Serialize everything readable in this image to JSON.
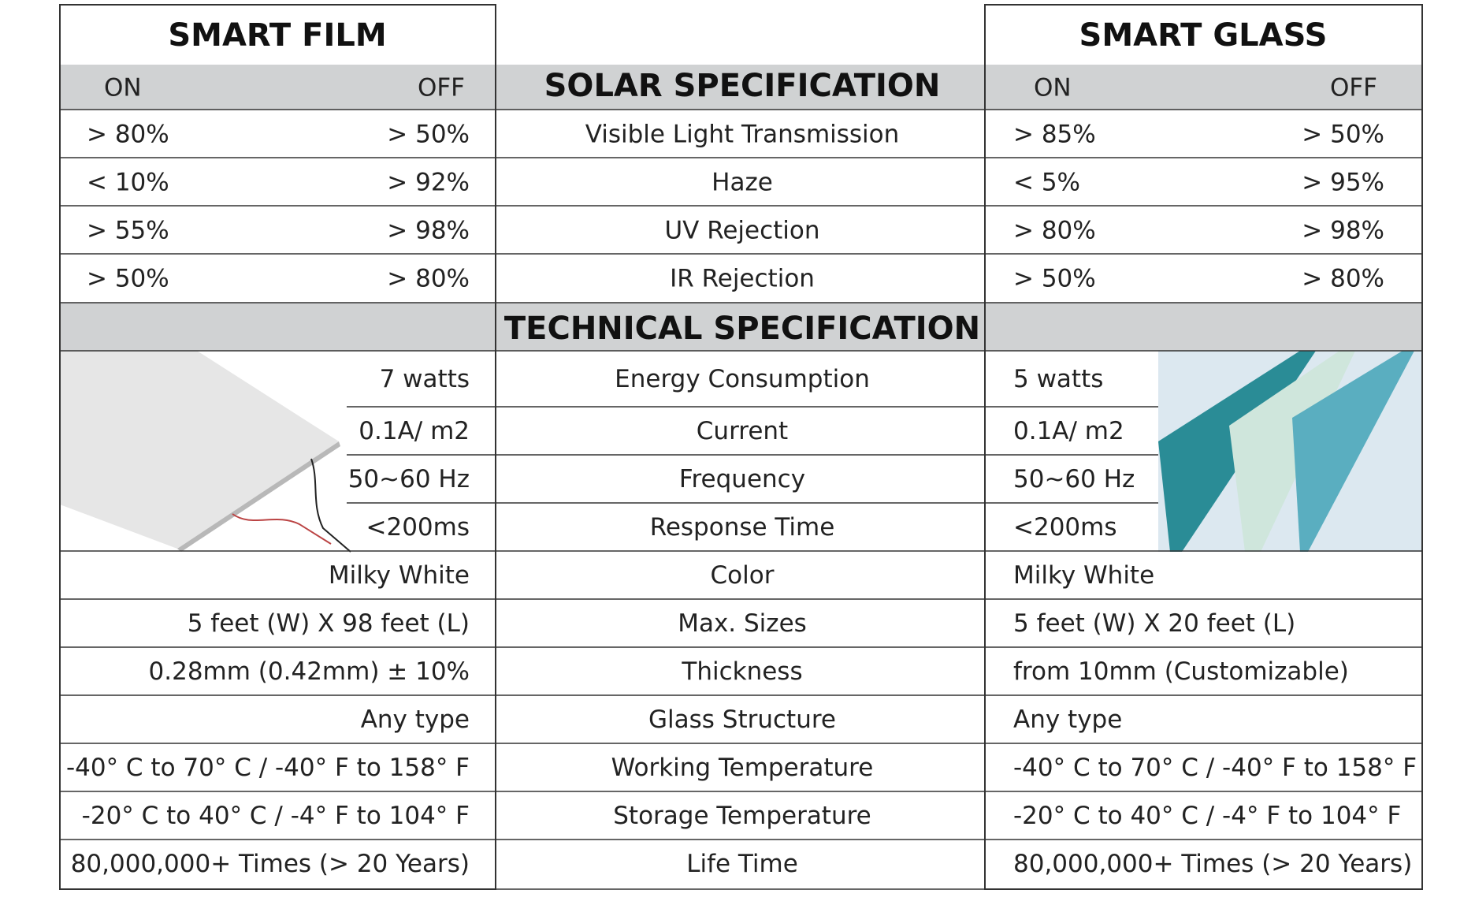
{
  "smart_film": {
    "title": "SMART FILM",
    "on": "ON",
    "off": "OFF"
  },
  "smart_glass": {
    "title": "SMART GLASS",
    "on": "ON",
    "off": "OFF"
  },
  "solar_title": "SOLAR SPECIFICATION",
  "solar_rows": [
    {
      "label": "Visible Light Transmission",
      "film_on": "> 80%",
      "film_off": "> 50%",
      "glass_on": "> 85%",
      "glass_off": "> 50%"
    },
    {
      "label": "Haze",
      "film_on": "< 10%",
      "film_off": "> 92%",
      "glass_on": "< 5%",
      "glass_off": "> 95%"
    },
    {
      "label": "UV Rejection",
      "film_on": "> 55%",
      "film_off": "> 98%",
      "glass_on": "> 80%",
      "glass_off": "> 98%"
    },
    {
      "label": "IR Rejection",
      "film_on": "> 50%",
      "film_off": "> 80%",
      "glass_on": "> 50%",
      "glass_off": "> 80%"
    }
  ],
  "technical_title": "TECHNICAL SPECIFICATION",
  "technical_rows": [
    {
      "label": "Energy Consumption",
      "film": "7 watts",
      "glass": "5 watts"
    },
    {
      "label": "Current",
      "film": "0.1A/ m2",
      "glass": "0.1A/ m2"
    },
    {
      "label": "Frequency",
      "film": "50~60 Hz",
      "glass": "50~60 Hz"
    },
    {
      "label": "Response Time",
      "film": "<200ms",
      "glass": "<200ms"
    },
    {
      "label": "Color",
      "film": "Milky White",
      "glass": "Milky White"
    },
    {
      "label": "Max. Sizes",
      "film": "5 feet (W) X 98 feet (L)",
      "glass": "5 feet (W) X 20 feet (L)"
    },
    {
      "label": "Thickness",
      "film": "0.28mm (0.42mm) ± 10%",
      "glass": "from 10mm (Customizable)"
    },
    {
      "label": "Glass Structure",
      "film": "Any type",
      "glass": "Any type"
    },
    {
      "label": "Working Temperature",
      "film": "-40° C to 70° C / -40° F to 158° F",
      "glass": "-40° C to 70° C / -40° F to 158° F"
    },
    {
      "label": "Storage Temperature",
      "film": "-20° C to 40° C / -4° F to 104° F",
      "glass": "-20° C to 40° C / -4° F to 104° F"
    },
    {
      "label": "Life Time",
      "film": "80,000,000+ Times (> 20 Years)",
      "glass": "80,000,000+ Times (> 20 Years)"
    }
  ]
}
